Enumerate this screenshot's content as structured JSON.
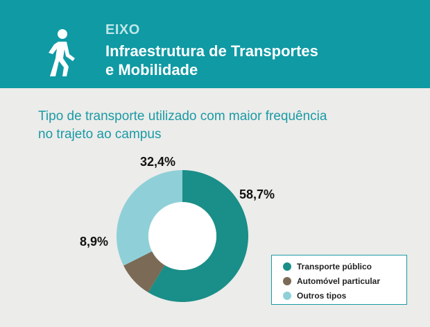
{
  "header": {
    "eyebrow": "EIXO",
    "title_line1": "Infraestrutura de Transportes",
    "title_line2": "e Mobilidade",
    "icon": "walking-person-icon"
  },
  "chart_data": {
    "type": "pie",
    "title": "Tipo de transporte utilizado com maior frequência no trajeto ao campus",
    "title_line1": "Tipo de transporte utilizado com maior frequência",
    "title_line2": "no trajeto ao campus",
    "donut": true,
    "series": [
      {
        "name": "Transporte público",
        "value": 58.7,
        "label": "58,7%",
        "color": "#1a8e88"
      },
      {
        "name": "Automóvel particular",
        "value": 8.9,
        "label": "8,9%",
        "color": "#7b6a55"
      },
      {
        "name": "Outros tipos",
        "value": 32.4,
        "label": "32,4%",
        "color": "#8fd0d8"
      }
    ],
    "legend_position": "bottom-right"
  },
  "colors": {
    "header_bg": "#0f9aa4",
    "page_bg": "#ececea",
    "accent": "#1a9aa5"
  }
}
